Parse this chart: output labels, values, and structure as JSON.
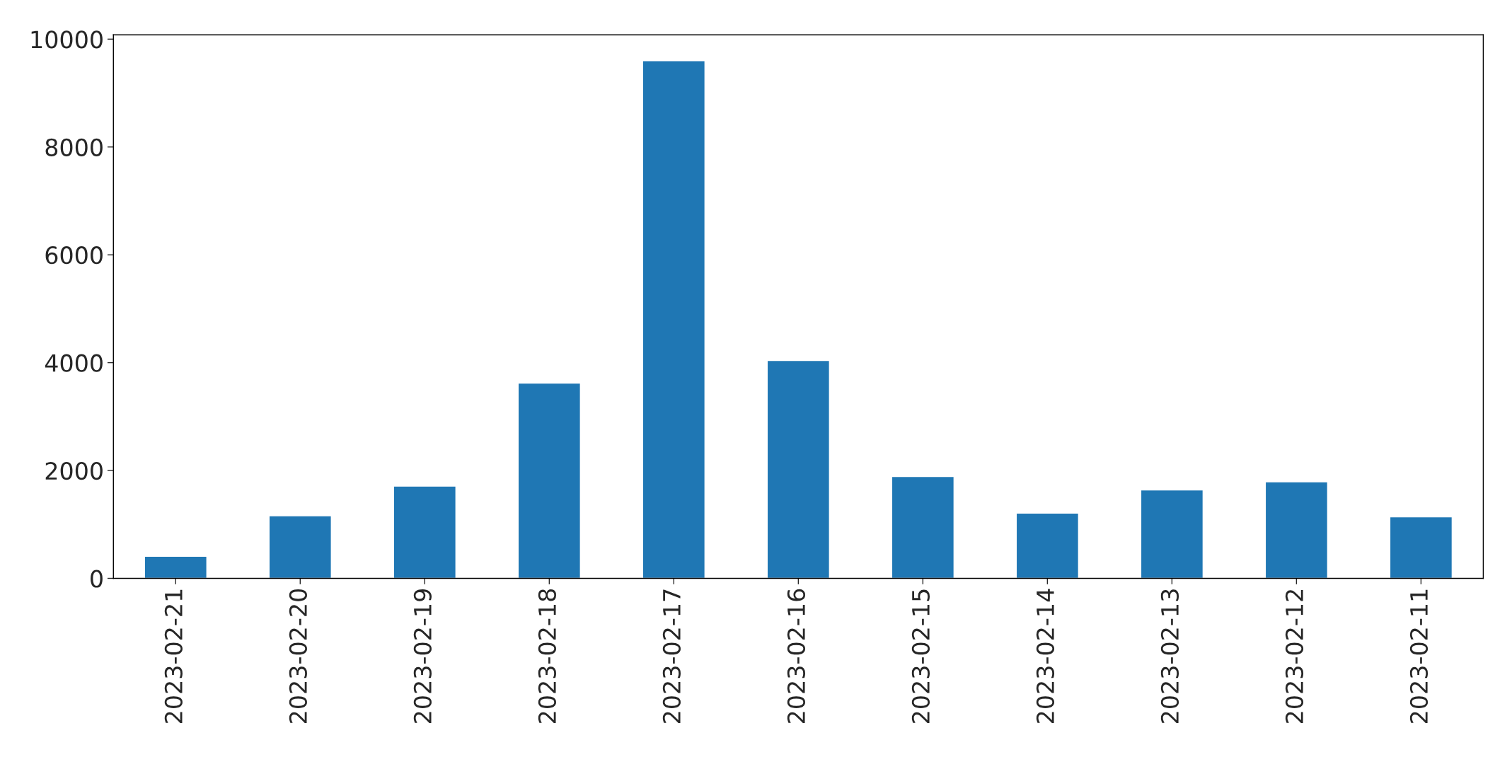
{
  "chart_data": {
    "type": "bar",
    "categories": [
      "2023-02-21",
      "2023-02-20",
      "2023-02-19",
      "2023-02-18",
      "2023-02-17",
      "2023-02-16",
      "2023-02-15",
      "2023-02-14",
      "2023-02-13",
      "2023-02-12",
      "2023-02-11"
    ],
    "values": [
      410,
      1160,
      1710,
      3620,
      9600,
      4040,
      1890,
      1210,
      1640,
      1790,
      1140
    ],
    "color": "#1f77b4",
    "ylim": [
      0,
      10080
    ],
    "yticks": [
      0,
      2000,
      4000,
      6000,
      8000,
      10000
    ],
    "grid": false,
    "legend": false
  }
}
